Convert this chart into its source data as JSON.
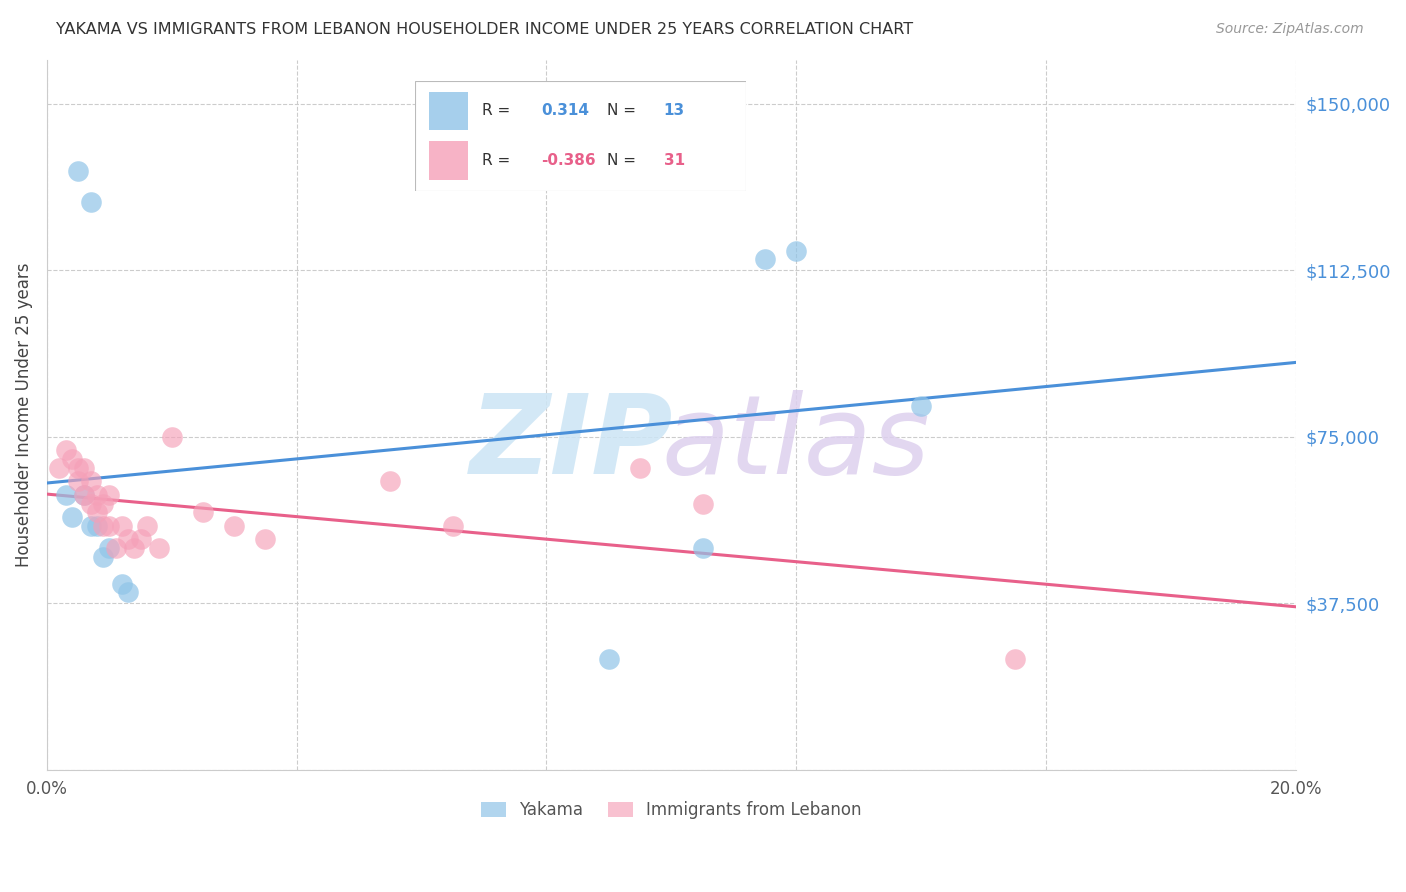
{
  "title": "YAKAMA VS IMMIGRANTS FROM LEBANON HOUSEHOLDER INCOME UNDER 25 YEARS CORRELATION CHART",
  "source": "Source: ZipAtlas.com",
  "ylabel": "Householder Income Under 25 years",
  "xlim": [
    0.0,
    0.2
  ],
  "ylim": [
    0,
    160000
  ],
  "yticks": [
    0,
    37500,
    75000,
    112500,
    150000
  ],
  "ytick_labels": [
    "",
    "$37,500",
    "$75,000",
    "$112,500",
    "$150,000"
  ],
  "xticks": [
    0.0,
    0.04,
    0.08,
    0.12,
    0.16,
    0.2
  ],
  "xtick_labels": [
    "0.0%",
    "",
    "",
    "",
    "",
    "20.0%"
  ],
  "blue_color": "#90c4e8",
  "pink_color": "#f5a0b8",
  "blue_line_color": "#4a90d9",
  "pink_line_color": "#e8608a",
  "yaxis_color": "#4a90d9",
  "yakama_x": [
    0.005,
    0.007,
    0.003,
    0.004,
    0.006,
    0.007,
    0.008,
    0.009,
    0.01,
    0.012,
    0.013,
    0.09,
    0.105,
    0.115,
    0.12,
    0.14
  ],
  "yakama_y": [
    135000,
    128000,
    62000,
    57000,
    62000,
    55000,
    55000,
    48000,
    50000,
    42000,
    40000,
    25000,
    50000,
    115000,
    117000,
    82000
  ],
  "lebanon_x": [
    0.002,
    0.003,
    0.004,
    0.005,
    0.005,
    0.006,
    0.006,
    0.007,
    0.007,
    0.008,
    0.008,
    0.009,
    0.009,
    0.01,
    0.01,
    0.011,
    0.012,
    0.013,
    0.014,
    0.015,
    0.016,
    0.018,
    0.02,
    0.025,
    0.03,
    0.035,
    0.055,
    0.065,
    0.095,
    0.105,
    0.155
  ],
  "lebanon_y": [
    68000,
    72000,
    70000,
    65000,
    68000,
    62000,
    68000,
    65000,
    60000,
    62000,
    58000,
    60000,
    55000,
    62000,
    55000,
    50000,
    55000,
    52000,
    50000,
    52000,
    55000,
    50000,
    75000,
    58000,
    55000,
    52000,
    65000,
    55000,
    68000,
    60000,
    25000
  ],
  "background_color": "#ffffff",
  "grid_color": "#cccccc"
}
